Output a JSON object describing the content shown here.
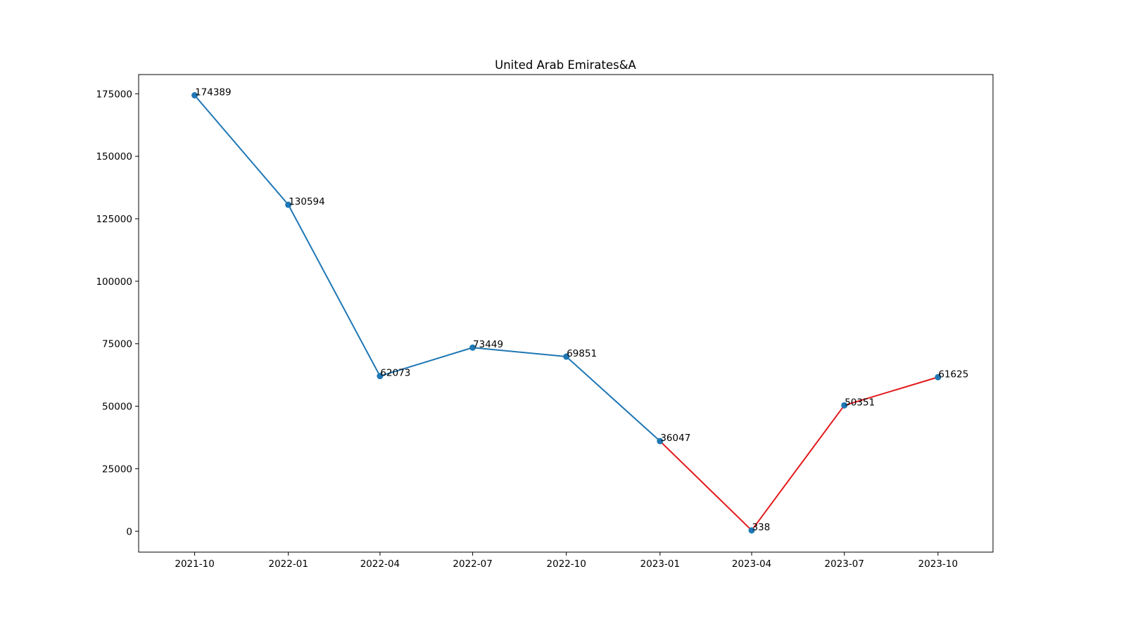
{
  "chart_data": {
    "type": "line",
    "title": "United Arab Emirates&A",
    "xlabel": "",
    "ylabel": "",
    "x": [
      "2021-10",
      "2022-01",
      "2022-04",
      "2022-07",
      "2022-10",
      "2023-01",
      "2023-04",
      "2023-07",
      "2023-10"
    ],
    "values": [
      174389,
      130594,
      62073,
      73449,
      69851,
      36047,
      338,
      50351,
      61625
    ],
    "data_labels": [
      "174389",
      "130594",
      "62073",
      "73449",
      "69851",
      "36047",
      "338",
      "50351",
      "61625"
    ],
    "x_tick_labels": [
      "2021-10",
      "2022-01",
      "2022-04",
      "2022-07",
      "2022-10",
      "2023-01",
      "2023-04",
      "2023-07",
      "2023-10"
    ],
    "y_ticks": [
      0,
      25000,
      50000,
      75000,
      100000,
      125000,
      150000,
      175000
    ],
    "y_tick_labels": [
      "0",
      "25000",
      "50000",
      "75000",
      "100000",
      "125000",
      "150000",
      "175000"
    ],
    "ylim": [
      -8364,
      182691
    ],
    "xlim": [
      "2021-08-07",
      "2023-11-24"
    ],
    "grid": false,
    "legend": "none",
    "segments": [
      {
        "from": "2021-10",
        "to": "2023-01",
        "color": "#1f77b4"
      },
      {
        "from": "2023-01",
        "to": "2023-10",
        "color": "#e31a1c"
      }
    ],
    "marker_color": "#1f77b4"
  }
}
